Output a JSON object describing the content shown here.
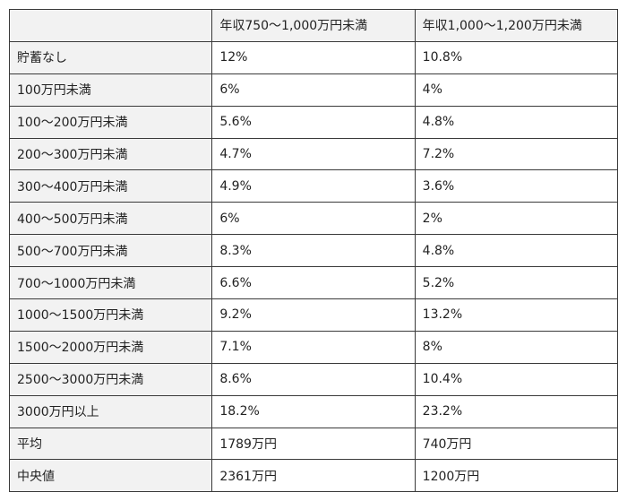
{
  "table": {
    "columns": [
      "年収750〜1,000万円未満",
      "年収1,000〜1,200万円未満"
    ],
    "rows": [
      [
        "貯蓄なし",
        "12%",
        "10.8%"
      ],
      [
        "100万円未満",
        "6%",
        "4%"
      ],
      [
        "100〜200万円未満",
        "5.6%",
        "4.8%"
      ],
      [
        "200〜300万円未満",
        "4.7%",
        "7.2%"
      ],
      [
        "300〜400万円未満",
        "4.9%",
        "3.6%"
      ],
      [
        "400〜500万円未満",
        "6%",
        "2%"
      ],
      [
        "500〜700万円未満",
        "8.3%",
        "4.8%"
      ],
      [
        "700〜1000万円未満",
        "6.6%",
        "5.2%"
      ],
      [
        "1000〜1500万円未満",
        "9.2%",
        "13.2%"
      ],
      [
        "1500〜2000万円未満",
        "7.1%",
        "8%"
      ],
      [
        "2500〜3000万円未満",
        "8.6%",
        "10.4%"
      ],
      [
        "3000万円以上",
        "18.2%",
        "23.2%"
      ],
      [
        "平均",
        "1789万円",
        "740万円"
      ],
      [
        "中央値",
        "2361万円",
        "1200万円"
      ]
    ]
  }
}
